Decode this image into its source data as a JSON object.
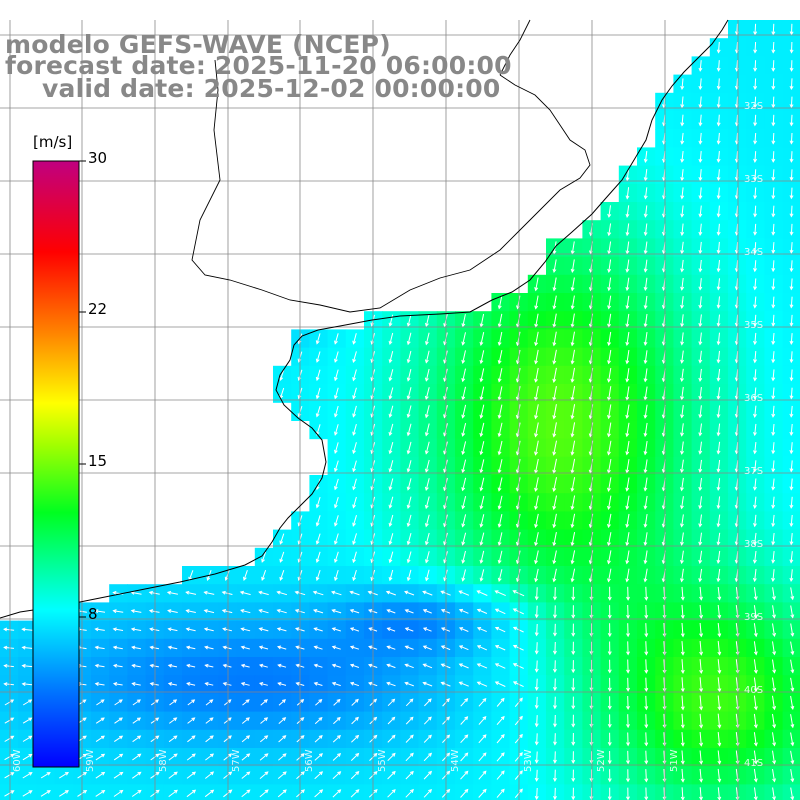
{
  "title": {
    "line1": "modelo GEFS-WAVE (NCEP)",
    "line2": "forecast date: 2025-11-20 06:00:00",
    "line3": "valid date: 2025-12-02 00:00:00"
  },
  "colorbar": {
    "unit": "[m/s]",
    "ticks": [
      {
        "value": 30,
        "label": "30"
      },
      {
        "value": 22,
        "label": "22"
      },
      {
        "value": 15,
        "label": "15"
      },
      {
        "value": 8,
        "label": "8"
      }
    ],
    "min": 0,
    "max": 30,
    "colors": [
      "#0000ff",
      "#0060ff",
      "#00c8ff",
      "#00ffff",
      "#00ff80",
      "#00ff00",
      "#80ff00",
      "#ffff00",
      "#ff8000",
      "#ff0000",
      "#ff0066",
      "#c0007a"
    ]
  },
  "grid": {
    "lat_labels": [
      "32S",
      "33S",
      "34S",
      "35S",
      "36S",
      "37S",
      "38S",
      "39S",
      "40S",
      "41S"
    ],
    "lon_labels": [
      "60W",
      "59W",
      "58W",
      "57W",
      "56W",
      "55W",
      "54W",
      "53W",
      "52W",
      "51W"
    ]
  },
  "field": {
    "name": "wind speed",
    "units": "m/s",
    "arrows": "wind direction",
    "value_range": [
      4,
      13
    ]
  }
}
